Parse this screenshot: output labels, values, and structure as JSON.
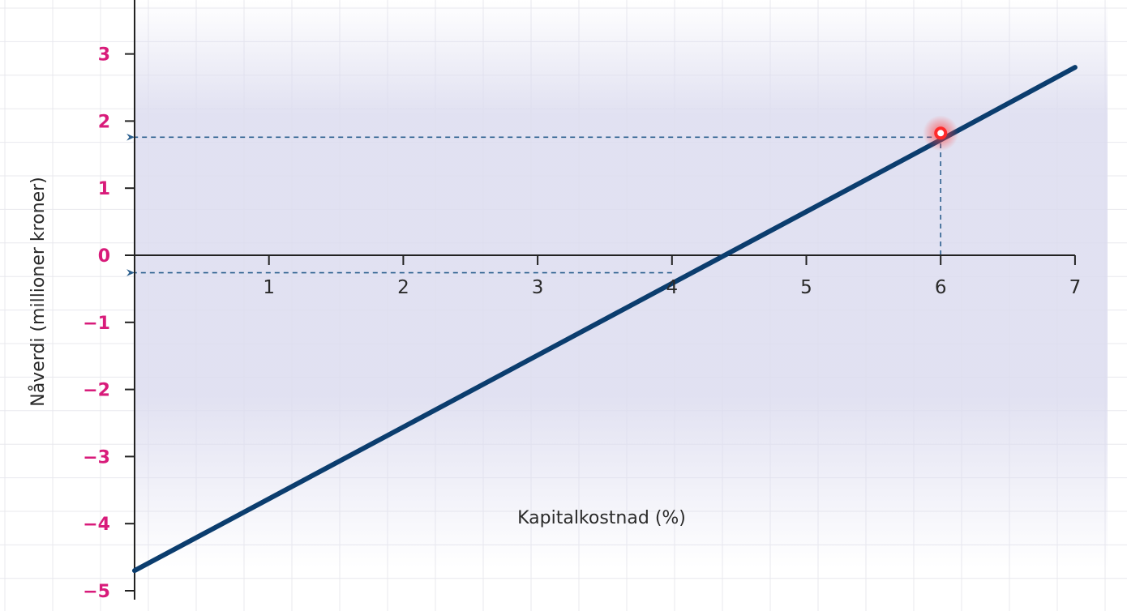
{
  "chart_data": {
    "type": "line",
    "title": "",
    "xlabel": "Kapitalkostnad (%)",
    "ylabel": "Nåverdi (millioner kroner)",
    "xlim": [
      0,
      7
    ],
    "ylim": [
      -5,
      3.6
    ],
    "x_ticks": [
      1,
      2,
      3,
      4,
      5,
      6,
      7
    ],
    "x_tick_labels": [
      "1",
      "2",
      "3",
      "4",
      "5",
      "6",
      "7"
    ],
    "y_ticks": [
      3,
      2,
      1,
      0,
      -1,
      -2,
      -3,
      -4,
      -5
    ],
    "y_tick_labels": [
      "3",
      "2",
      "1",
      "0",
      "−1",
      "−2",
      "−3",
      "−4",
      "−5"
    ],
    "grid": true,
    "series": [
      {
        "x": [
          0,
          1,
          2,
          3,
          4,
          5,
          6,
          7
        ],
        "y": [
          -4.7,
          -3.63,
          -2.56,
          -1.49,
          -0.42,
          0.65,
          1.72,
          2.8
        ]
      }
    ],
    "highlight_point": {
      "x": 6,
      "y": 1.82
    },
    "reference_lines": [
      {
        "from": {
          "x": 6,
          "y": 1.76
        },
        "to": {
          "x": 0,
          "y": 1.76
        }
      },
      {
        "from": {
          "x": 6,
          "y": 0
        },
        "to": {
          "x": 6,
          "y": 1.76
        }
      },
      {
        "from": {
          "x": 4,
          "y": -0.26
        },
        "to": {
          "x": 0,
          "y": -0.26
        }
      }
    ],
    "colors": {
      "line": "#0b3d6e",
      "ytick": "#d81b7a",
      "axis": "#222222",
      "reference": "#2b5f8e",
      "highlight": "#ff2a2a",
      "band": "#dcdcef",
      "grid": "#e8e8ee"
    }
  }
}
